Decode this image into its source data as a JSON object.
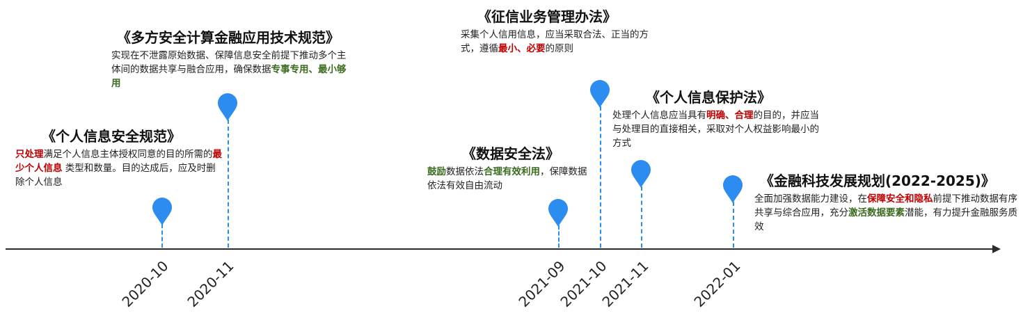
{
  "timeline": {
    "events": [
      {
        "date": "2020-10",
        "title": "《个人信息安全规范》",
        "desc": [
          {
            "t": "只处理",
            "s": "red"
          },
          {
            "t": "满足个人信息主体授权同意的目的所需的",
            "s": ""
          },
          {
            "t": "最少个人信息",
            "s": "red"
          },
          {
            "t": " 类型和数量。目的达成后，应及时删除个人信息",
            "s": ""
          }
        ]
      },
      {
        "date": "2020-11",
        "title": "《多方安全计算金融应用技术规范》",
        "desc": [
          {
            "t": "实现在不泄露原始数据、保障信息安全前提下推动多个主体间的数据共享与融合应用，确保数据",
            "s": ""
          },
          {
            "t": "专事专用、最小够用",
            "s": "green"
          }
        ]
      },
      {
        "date": "2021-09",
        "title": "《数据安全法》",
        "desc": [
          {
            "t": "鼓励",
            "s": "green"
          },
          {
            "t": "数据依法",
            "s": ""
          },
          {
            "t": "合理有效利用",
            "s": "green"
          },
          {
            "t": "，保障数据依法有效自由流动",
            "s": ""
          }
        ]
      },
      {
        "date": "2021-10",
        "title": "《征信业务管理办法》",
        "desc": [
          {
            "t": "采集个人信用信息，应当采取合法、正当的方式，遵循",
            "s": ""
          },
          {
            "t": "最小、必要",
            "s": "red"
          },
          {
            "t": "的原则",
            "s": ""
          }
        ]
      },
      {
        "date": "2021-11",
        "title": "《个人信息保护法》",
        "desc": [
          {
            "t": "处理个人信息应当具有",
            "s": ""
          },
          {
            "t": "明确、合理",
            "s": "red"
          },
          {
            "t": "的目的，并应当与处理目的直接相关，采取对个人权益影响最小的方式",
            "s": ""
          }
        ]
      },
      {
        "date": "2022-01",
        "title": "《金融科技发展规划(2022-2025)》",
        "desc": [
          {
            "t": "全面加强数据能力建设，在",
            "s": ""
          },
          {
            "t": "保障安全和隐私",
            "s": "red"
          },
          {
            "t": "前提下推动数据有序共享与综合应用，充分",
            "s": ""
          },
          {
            "t": "激活数据要素",
            "s": "green"
          },
          {
            "t": "潜能，有力提升金融服务质效",
            "s": ""
          }
        ]
      }
    ]
  },
  "colors": {
    "accent": "#2d8cf0",
    "highlight_red": "#c00000",
    "highlight_green": "#3a6b1f"
  },
  "icons": {
    "marker": "location-pin-icon"
  }
}
